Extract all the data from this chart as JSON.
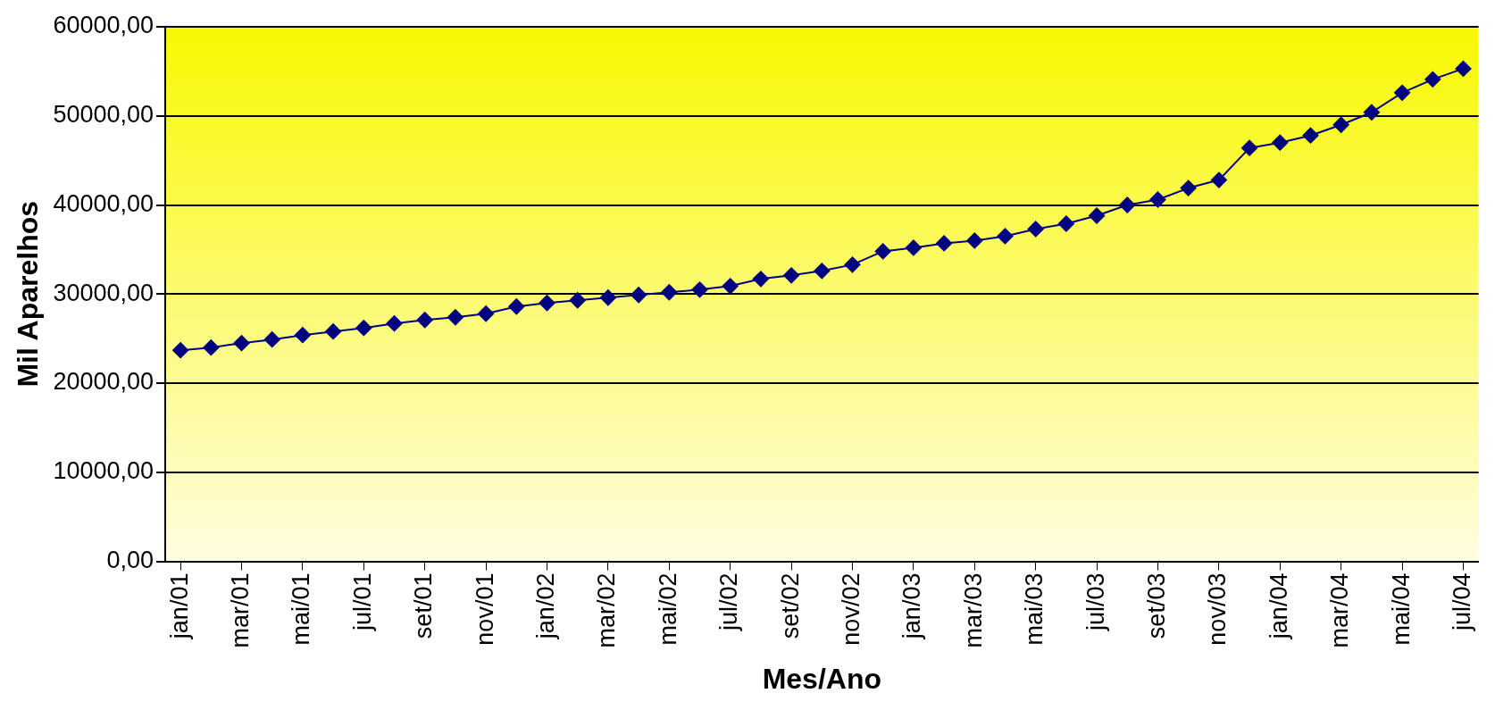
{
  "chart_data": {
    "type": "line",
    "xlabel": "Mes/Ano",
    "ylabel": "Mil Aparelhos",
    "categories": [
      "jan/01",
      null,
      "mar/01",
      null,
      "mai/01",
      null,
      "jul/01",
      null,
      "set/01",
      null,
      "nov/01",
      null,
      "jan/02",
      null,
      "mar/02",
      null,
      "mai/02",
      null,
      "jul/02",
      null,
      "set/02",
      null,
      "nov/02",
      null,
      "jan/03",
      null,
      "mar/03",
      null,
      "mai/03",
      null,
      "jul/03",
      null,
      "set/03",
      null,
      "nov/03",
      null,
      "jan/04",
      null,
      "mar/04",
      null,
      "mai/04",
      null,
      "jul/04"
    ],
    "series": [
      {
        "color": "#000080",
        "values": [
          23700,
          24000,
          24500,
          24900,
          25400,
          25800,
          26200,
          26700,
          27100,
          27400,
          27800,
          28600,
          29000,
          29300,
          29600,
          29900,
          30200,
          30500,
          30900,
          31700,
          32100,
          32600,
          33300,
          34800,
          35200,
          35700,
          36000,
          36500,
          37300,
          37900,
          38800,
          40000,
          40600,
          41900,
          42800,
          46400,
          47000,
          47800,
          49000,
          50400,
          52600,
          54100,
          55300
        ]
      }
    ],
    "ylim": [
      0,
      60000
    ],
    "yticks": [
      {
        "value": 0,
        "label": "0,00"
      },
      {
        "value": 10000,
        "label": "10000,00"
      },
      {
        "value": 20000,
        "label": "20000,00"
      },
      {
        "value": 30000,
        "label": "30000,00"
      },
      {
        "value": 40000,
        "label": "40000,00"
      },
      {
        "value": 50000,
        "label": "50000,00"
      },
      {
        "value": 60000,
        "label": "60000,00"
      }
    ],
    "grid": "y",
    "legend": false,
    "marker": "diamond",
    "line_style": "solid"
  }
}
